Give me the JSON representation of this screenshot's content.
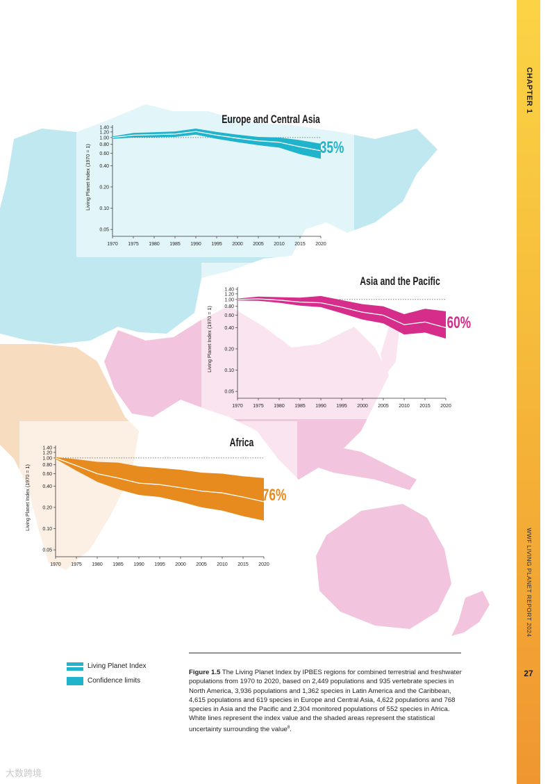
{
  "sidebar": {
    "chapter": "CHAPTER 1",
    "report": "WWF LIVING PLANET REPORT 2024",
    "page_number": "27"
  },
  "legend": {
    "index_label": "Living Planet Index",
    "confidence_label": "Confidence limits"
  },
  "caption": {
    "label": "Figure 1.5",
    "text": "The Living Planet Index by IPBES regions for combined terrestrial and freshwater populations from 1970 to 2020, based on 2,449 populations and 935 vertebrate species in North America, 3,936 populations and 1,362 species in Latin America and the Caribbean, 4,615 populations and 619 species in Europe and Central Asia, 4,622 populations and 768 species in Asia and the Pacific and 2,304 monitored populations of 552 species in Africa. White lines represent the index value and the shaded areas represent the statistical uncertainty surrounding the value",
    "footnote": "8",
    "end": "."
  },
  "watermark": "大数跨境",
  "colors": {
    "europe": "#1fb3cc",
    "asia": "#d62c8a",
    "africa": "#e88b1f",
    "map_cyan": "#bfe8f0",
    "map_pink": "#f2c4de",
    "map_peach": "#f8dcc0",
    "sidebar_top": "#fbd445",
    "sidebar_bottom": "#ef9630"
  },
  "chart_data": [
    {
      "type": "area",
      "title": "Europe and Central Asia",
      "change_label": "-35%",
      "color": "#1fb3cc",
      "ylabel": "Living Planet Index (1970 = 1)",
      "yscale": "log",
      "ylim": [
        0.04,
        1.5
      ],
      "yticks": [
        0.05,
        0.1,
        0.2,
        0.4,
        0.6,
        0.8,
        1.0,
        1.2,
        1.4
      ],
      "ytick_labels": [
        "0.05",
        "0.10",
        "0.20",
        "0.40",
        "0.60",
        "0.80",
        "1.00",
        "1.20",
        "1.40"
      ],
      "xlim": [
        1970,
        2020
      ],
      "xticks": [
        1970,
        1975,
        1980,
        1985,
        1990,
        1995,
        2000,
        2005,
        2010,
        2015,
        2020
      ],
      "reference_line": 1.0,
      "x": [
        1970,
        1975,
        1980,
        1985,
        1990,
        1995,
        2000,
        2005,
        2010,
        2015,
        2020
      ],
      "index": [
        1.0,
        1.08,
        1.1,
        1.12,
        1.22,
        1.08,
        0.98,
        0.9,
        0.86,
        0.74,
        0.65
      ],
      "lower": [
        0.96,
        1.0,
        1.01,
        1.02,
        1.1,
        0.96,
        0.86,
        0.78,
        0.72,
        0.58,
        0.5
      ],
      "upper": [
        1.04,
        1.16,
        1.19,
        1.22,
        1.34,
        1.2,
        1.1,
        1.02,
        1.0,
        0.92,
        0.82
      ]
    },
    {
      "type": "area",
      "title": "Asia and the Pacific",
      "change_label": "- 60%",
      "color": "#d62c8a",
      "ylabel": "Living Planet Index (1970 = 1)",
      "yscale": "log",
      "ylim": [
        0.04,
        1.5
      ],
      "yticks": [
        0.05,
        0.1,
        0.2,
        0.4,
        0.6,
        0.8,
        1.0,
        1.2,
        1.4
      ],
      "ytick_labels": [
        "0.05",
        "0.10",
        "0.20",
        "0.40",
        "0.60",
        "0.80",
        "1.00",
        "1.20",
        "1.40"
      ],
      "xlim": [
        1970,
        2020
      ],
      "xticks": [
        1970,
        1975,
        1980,
        1985,
        1990,
        1995,
        2000,
        2005,
        2010,
        2015,
        2020
      ],
      "reference_line": 1.0,
      "x": [
        1970,
        1975,
        1980,
        1985,
        1990,
        1995,
        2000,
        2005,
        2010,
        2015,
        2020
      ],
      "index": [
        1.0,
        1.02,
        0.98,
        0.92,
        0.9,
        0.78,
        0.66,
        0.6,
        0.44,
        0.48,
        0.4
      ],
      "lower": [
        0.97,
        0.96,
        0.9,
        0.82,
        0.78,
        0.64,
        0.52,
        0.46,
        0.32,
        0.34,
        0.28
      ],
      "upper": [
        1.03,
        1.1,
        1.08,
        1.06,
        1.12,
        0.98,
        0.86,
        0.8,
        0.62,
        0.74,
        0.68
      ]
    },
    {
      "type": "area",
      "title": "Africa",
      "change_label": "-76%",
      "color": "#e88b1f",
      "ylabel": "Living Planet Index (1970 = 1)",
      "yscale": "log",
      "ylim": [
        0.04,
        1.5
      ],
      "yticks": [
        0.05,
        0.1,
        0.2,
        0.4,
        0.6,
        0.8,
        1.0,
        1.2,
        1.4
      ],
      "ytick_labels": [
        "0.05",
        "0.10",
        "0.20",
        "0.40",
        "0.60",
        "0.80",
        "1.00",
        "1.20",
        "1.40"
      ],
      "xlim": [
        1970,
        2020
      ],
      "xticks": [
        1970,
        1975,
        1980,
        1985,
        1990,
        1995,
        2000,
        2005,
        2010,
        2015,
        2020
      ],
      "reference_line": 1.0,
      "x": [
        1970,
        1975,
        1980,
        1985,
        1990,
        1995,
        2000,
        2005,
        2010,
        2015,
        2020
      ],
      "index": [
        1.0,
        0.78,
        0.6,
        0.52,
        0.44,
        0.42,
        0.38,
        0.34,
        0.32,
        0.28,
        0.24
      ],
      "lower": [
        0.97,
        0.66,
        0.46,
        0.36,
        0.3,
        0.28,
        0.24,
        0.2,
        0.18,
        0.15,
        0.13
      ],
      "upper": [
        1.03,
        0.96,
        0.88,
        0.86,
        0.76,
        0.72,
        0.68,
        0.62,
        0.6,
        0.55,
        0.52
      ]
    }
  ]
}
